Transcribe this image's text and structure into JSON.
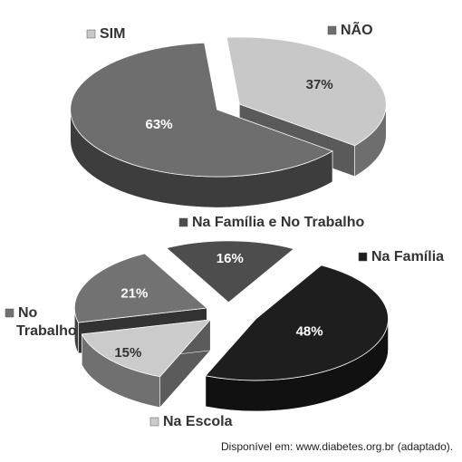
{
  "chart_data": [
    {
      "type": "pie",
      "style": "3d-exploded",
      "categories": [
        "SIM",
        "NÃO"
      ],
      "values": [
        37,
        63
      ],
      "value_labels": [
        "37%",
        "63%"
      ],
      "colors": [
        "#c8c8c8",
        "#6e6e6e"
      ]
    },
    {
      "type": "pie",
      "style": "3d-exploded",
      "categories": [
        "Na Família e No Trabalho",
        "Na Família",
        "Na Escola",
        "No Trabalho"
      ],
      "values": [
        16,
        48,
        15,
        21
      ],
      "value_labels": [
        "16%",
        "48%",
        "15%",
        "21%"
      ],
      "colors": [
        "#4d4d4d",
        "#1e1e1e",
        "#cbcbcb",
        "#727272"
      ]
    }
  ],
  "source": "Disponível em: www.diabetes.org.br (adaptado)."
}
